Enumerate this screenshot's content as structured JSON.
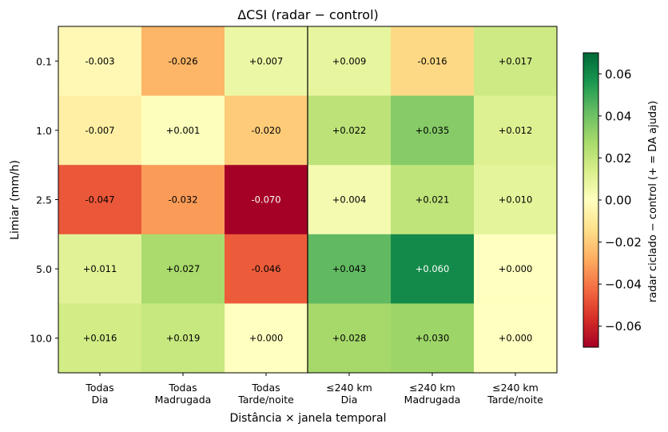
{
  "chart_data": {
    "type": "heatmap",
    "title": "ΔCSI  (radar − control)",
    "xlabel": "Distância × janela temporal",
    "ylabel": "Limiar (mm/h)",
    "x_categories": [
      "Todas\nDia",
      "Todas\nMadrugada",
      "Todas\nTarde/noite",
      "≤240 km\nDia",
      "≤240 km\nMadrugada",
      "≤240 km\nTarde/noite"
    ],
    "y_categories": [
      "0.1",
      "1.0",
      "2.5",
      "5.0",
      "10.0"
    ],
    "values": [
      [
        -0.003,
        -0.026,
        0.007,
        0.009,
        -0.016,
        0.017
      ],
      [
        -0.007,
        0.001,
        -0.02,
        0.022,
        0.035,
        0.012
      ],
      [
        -0.047,
        -0.032,
        -0.07,
        0.004,
        0.021,
        0.01
      ],
      [
        0.011,
        0.027,
        -0.046,
        0.043,
        0.06,
        0.0
      ],
      [
        0.016,
        0.019,
        0.0,
        0.028,
        0.03,
        0.0
      ]
    ],
    "cell_labels": [
      [
        "-0.003",
        "-0.026",
        "+0.007",
        "+0.009",
        "-0.016",
        "+0.017"
      ],
      [
        "-0.007",
        "+0.001",
        "-0.020",
        "+0.022",
        "+0.035",
        "+0.012"
      ],
      [
        "-0.047",
        "-0.032",
        "-0.070",
        "+0.004",
        "+0.021",
        "+0.010"
      ],
      [
        "+0.011",
        "+0.027",
        "-0.046",
        "+0.043",
        "+0.060",
        "+0.000"
      ],
      [
        "+0.016",
        "+0.019",
        "+0.000",
        "+0.028",
        "+0.030",
        "+0.000"
      ]
    ],
    "colormap": "RdYlGn",
    "vmin": -0.07,
    "vmax": 0.07,
    "colorbar": {
      "label": "radar ciclado − control  (+ = DA ajuda)",
      "ticks": [
        0.06,
        0.04,
        0.02,
        0.0,
        -0.02,
        -0.04,
        -0.06
      ],
      "tick_labels": [
        "0.06",
        "0.04",
        "0.02",
        "0.00",
        "−0.02",
        "−0.04",
        "−0.06"
      ]
    }
  }
}
